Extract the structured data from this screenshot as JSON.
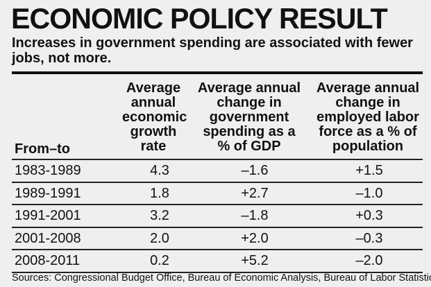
{
  "title": "ECONOMIC POLICY RESULT",
  "subtitle": "Increases in government spending are associated with fewer jobs, not more.",
  "chart_data": {
    "type": "table",
    "columns": [
      "From–to",
      "Average annual economic growth rate",
      "Average annual change in government spending as a % of GDP",
      "Average annual change in employed labor force as a % of population"
    ],
    "rows": [
      [
        "1983-1989",
        "4.3",
        "–1.6",
        "+1.5"
      ],
      [
        "1989-1991",
        "1.8",
        "+2.7",
        "–1.0"
      ],
      [
        "1991-2001",
        "3.2",
        "–1.8",
        "+0.3"
      ],
      [
        "2001-2008",
        "2.0",
        "+2.0",
        "–0.3"
      ],
      [
        "2008-2011",
        "0.2",
        "+5.2",
        "–2.0"
      ]
    ],
    "source": "Sources: Congressional Budget Office, Bureau of Economic Analysis, Bureau of Labor Statistics"
  }
}
